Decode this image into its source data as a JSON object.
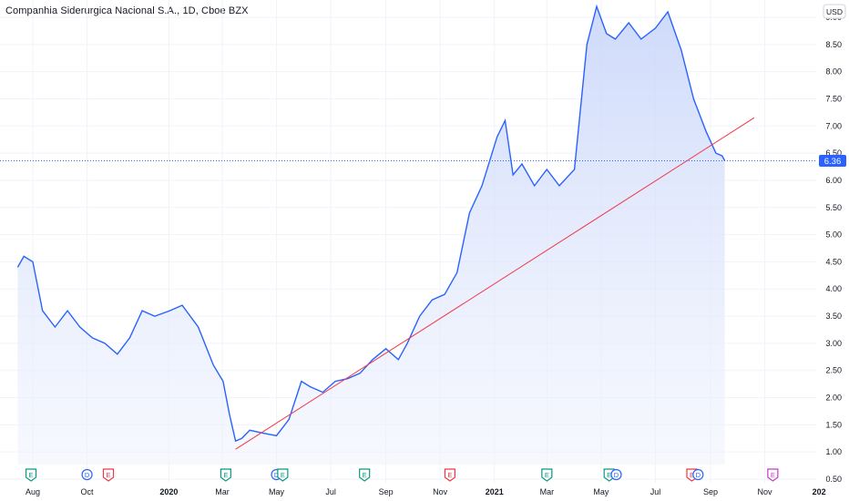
{
  "header": {
    "title": "Companhia Siderurgica Nacional S.A., 1D, Cboe BZX"
  },
  "currency": "USD",
  "chart_data": {
    "type": "area",
    "title": "Companhia Siderurgica Nacional S.A., 1D, Cboe BZX",
    "ylim": [
      0.5,
      9.2
    ],
    "y_ticks": [
      0.5,
      1.0,
      1.5,
      2.0,
      2.5,
      3.0,
      3.5,
      4.0,
      4.5,
      5.0,
      5.5,
      6.0,
      6.5,
      7.0,
      7.5,
      8.0,
      8.5,
      9.0
    ],
    "x_ticks": [
      "Aug",
      "Oct",
      "2020",
      "Mar",
      "May",
      "Jul",
      "Sep",
      "Nov",
      "2021",
      "Mar",
      "May",
      "Jul",
      "Sep",
      "Nov",
      "202"
    ],
    "last_price": "6.36",
    "series": [
      {
        "x": [
          "2019-07-15",
          "2019-07-22",
          "2019-08-01",
          "2019-08-12",
          "2019-08-26",
          "2019-09-09",
          "2019-09-23",
          "2019-10-07",
          "2019-10-21",
          "2019-11-04",
          "2019-11-18",
          "2019-12-02",
          "2019-12-16",
          "2020-01-02",
          "2020-01-16",
          "2020-02-03",
          "2020-02-20",
          "2020-03-02",
          "2020-03-09",
          "2020-03-16",
          "2020-03-23",
          "2020-04-01",
          "2020-04-15",
          "2020-05-01",
          "2020-05-15",
          "2020-05-29",
          "2020-06-08",
          "2020-06-22",
          "2020-07-06",
          "2020-07-20",
          "2020-08-03",
          "2020-08-17",
          "2020-09-01",
          "2020-09-15",
          "2020-09-25",
          "2020-10-09",
          "2020-10-23",
          "2020-11-06",
          "2020-11-20",
          "2020-12-04",
          "2020-12-18",
          "2021-01-04",
          "2021-01-13",
          "2021-01-22",
          "2021-02-01",
          "2021-02-15",
          "2021-03-01",
          "2021-03-15",
          "2021-04-01",
          "2021-04-15",
          "2021-04-26",
          "2021-05-07",
          "2021-05-17",
          "2021-06-01",
          "2021-06-15",
          "2021-07-01",
          "2021-07-15",
          "2021-07-30",
          "2021-08-13",
          "2021-08-27",
          "2021-09-07",
          "2021-09-14",
          "2021-09-17"
        ],
        "values": [
          4.4,
          4.6,
          4.5,
          3.6,
          3.3,
          3.6,
          3.3,
          3.1,
          3.0,
          2.8,
          3.1,
          3.6,
          3.5,
          3.6,
          3.7,
          3.3,
          2.6,
          2.3,
          1.7,
          1.2,
          1.25,
          1.4,
          1.35,
          1.3,
          1.6,
          2.3,
          2.2,
          2.1,
          2.3,
          2.35,
          2.45,
          2.7,
          2.9,
          2.7,
          3.0,
          3.5,
          3.8,
          3.9,
          4.3,
          5.4,
          5.9,
          6.8,
          7.1,
          6.1,
          6.3,
          5.9,
          6.2,
          5.9,
          6.2,
          8.5,
          9.2,
          8.7,
          8.6,
          8.9,
          8.6,
          8.8,
          9.1,
          8.4,
          7.5,
          6.9,
          6.5,
          6.45,
          6.36
        ]
      }
    ],
    "trendline": {
      "from": {
        "x": "2020-03-16",
        "y": 1.05
      },
      "to": {
        "x": "2021-10-20",
        "y": 7.15
      }
    },
    "events": [
      {
        "label": "E",
        "x": "2019-07-30",
        "kind": "earnings"
      },
      {
        "label": "D",
        "x": "2019-10-01",
        "kind": "dividend"
      },
      {
        "label": "E",
        "x": "2019-10-25",
        "kind": "earnings-miss"
      },
      {
        "label": "E",
        "x": "2020-03-05",
        "kind": "earnings"
      },
      {
        "label": "D",
        "x": "2020-05-01",
        "kind": "dividend"
      },
      {
        "label": "E",
        "x": "2020-05-08",
        "kind": "earnings"
      },
      {
        "label": "E",
        "x": "2020-08-08",
        "kind": "earnings"
      },
      {
        "label": "E",
        "x": "2020-11-12",
        "kind": "earnings-miss"
      },
      {
        "label": "E",
        "x": "2021-03-01",
        "kind": "earnings"
      },
      {
        "label": "E",
        "x": "2021-05-10",
        "kind": "earnings"
      },
      {
        "label": "D",
        "x": "2021-05-18",
        "kind": "dividend"
      },
      {
        "label": "E",
        "x": "2021-08-11",
        "kind": "earnings-miss"
      },
      {
        "label": "D",
        "x": "2021-08-18",
        "kind": "dividend"
      },
      {
        "label": "E",
        "x": "2021-11-10",
        "kind": "earnings-future"
      }
    ],
    "colors": {
      "line": "#2962ff",
      "area_top": "#d6e0fb",
      "trendline": "#f23645",
      "price_tag": "#2962ff",
      "earnings": "#089981",
      "earnings_miss": "#f23645",
      "earnings_future": "#c839c9",
      "dividend": "#2962ff",
      "grid": "#f0f3fa"
    }
  }
}
